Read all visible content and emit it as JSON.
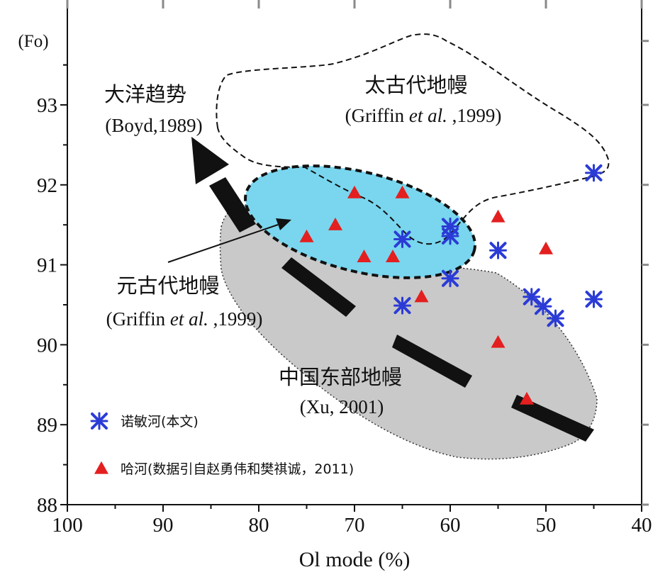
{
  "chart_data": {
    "type": "scatter",
    "title": "",
    "xlabel": "Ol mode (%)",
    "ylabel": "(Fo)",
    "xlim": [
      100,
      40
    ],
    "ylim": [
      88,
      94
    ],
    "x_ticks": [
      100,
      90,
      80,
      70,
      60,
      50,
      40
    ],
    "x_tick_labels": [
      "100",
      "90",
      "80",
      "70",
      "60",
      "50",
      "40"
    ],
    "y_ticks": [
      88,
      89,
      90,
      91,
      92,
      93
    ],
    "y_tick_labels": [
      "88",
      "89",
      "90",
      "91",
      "92",
      "93"
    ],
    "series": [
      {
        "name": "诺敏河(本文)",
        "marker": "asterisk",
        "color": "#2b3bd6",
        "points": [
          {
            "x": 65,
            "y": 91.32
          },
          {
            "x": 60,
            "y": 91.48
          },
          {
            "x": 60,
            "y": 91.36
          },
          {
            "x": 60,
            "y": 90.83
          },
          {
            "x": 55,
            "y": 91.18
          },
          {
            "x": 65,
            "y": 90.49
          },
          {
            "x": 51.5,
            "y": 90.6
          },
          {
            "x": 50.3,
            "y": 90.48
          },
          {
            "x": 49,
            "y": 90.33
          },
          {
            "x": 45,
            "y": 90.57
          },
          {
            "x": 45,
            "y": 92.15
          }
        ]
      },
      {
        "name": "哈河(数据引自赵勇伟和樊祺诚，2011)",
        "marker": "triangle",
        "color": "#e31f1f",
        "points": [
          {
            "x": 75,
            "y": 91.35
          },
          {
            "x": 72,
            "y": 91.5
          },
          {
            "x": 70,
            "y": 91.9
          },
          {
            "x": 69,
            "y": 91.1
          },
          {
            "x": 66,
            "y": 91.1
          },
          {
            "x": 65,
            "y": 91.9
          },
          {
            "x": 63,
            "y": 90.6
          },
          {
            "x": 55,
            "y": 91.6
          },
          {
            "x": 55,
            "y": 90.03
          },
          {
            "x": 50,
            "y": 91.2
          },
          {
            "x": 52,
            "y": 89.32
          }
        ]
      }
    ],
    "regions": [
      {
        "name": "太古代地幔",
        "source": "(Griffin et al. ,1999)"
      },
      {
        "name": "元古代地幔",
        "source": "(Griffin et al. ,1999)"
      },
      {
        "name": "中国东部地幔",
        "source": "(Xu, 2001)"
      }
    ],
    "annotations": {
      "trend": "大洋趋势",
      "trend_ref": "(Boyd,1989)"
    },
    "legend": [
      {
        "label": "诺敏河(本文)"
      },
      {
        "label": "哈河(数据引自赵勇伟和樊祺诚，2011)"
      }
    ],
    "colors": {
      "proterozoic_fill": "#79d6ee",
      "china_fill": "#c9c9c9",
      "asterisk": "#2b3bd6",
      "triangle": "#e31f1f",
      "tick": "#8a8a8a"
    }
  },
  "text": {
    "archean_name": "太古代地幔",
    "archean_ref_pre": "(Griffin ",
    "archean_ref_italic": "et al.",
    "archean_ref_post": " ,1999)",
    "trend_name": "大洋趋势",
    "trend_ref": "(Boyd,1989)",
    "proterozoic_name": "元古代地幔",
    "proterozoic_ref_pre": "(Griffin ",
    "proterozoic_ref_italic": "et al.",
    "proterozoic_ref_post": " ,1999)",
    "china_name": "中国东部地幔",
    "china_ref": "(Xu, 2001)",
    "legend_blue": "诺敏河(本文)",
    "legend_red": "哈河(数据引自赵勇伟和樊祺诚，2011)",
    "fo_label": "(Fo)",
    "x_axis_label": "Ol mode (%)"
  }
}
